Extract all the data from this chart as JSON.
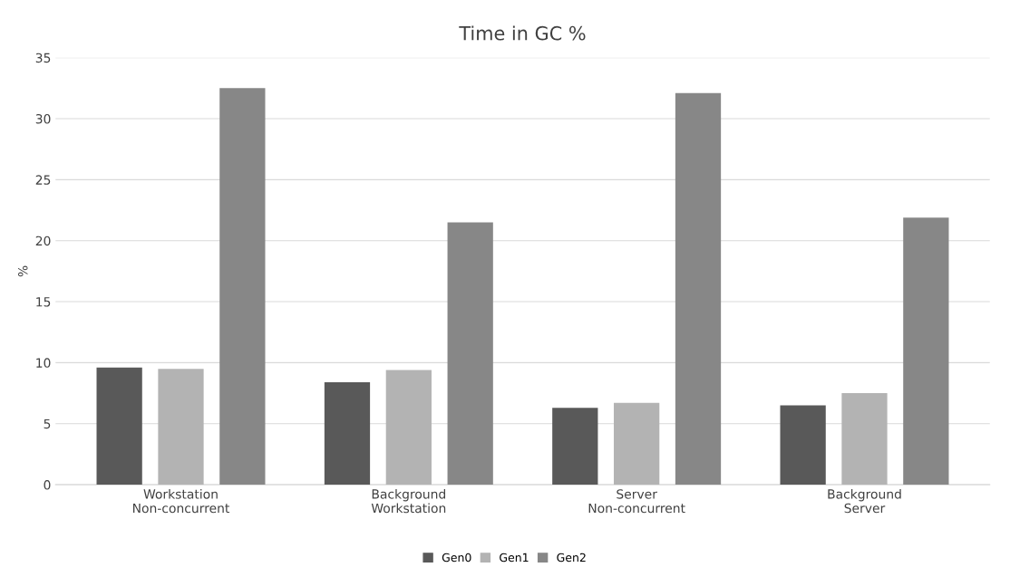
{
  "chart_data": {
    "type": "bar",
    "title": "Time in GC %",
    "ylabel": "%",
    "categories": [
      "Workstation\nNon-concurrent",
      "Background\nWorkstation",
      "Server\nNon-concurrent",
      "Background\nServer"
    ],
    "series": [
      {
        "name": "Gen0",
        "color": "#595959",
        "values": [
          9.6,
          8.4,
          6.3,
          6.5
        ]
      },
      {
        "name": "Gen1",
        "color": "#b3b3b3",
        "values": [
          9.5,
          9.4,
          6.7,
          7.5
        ]
      },
      {
        "name": "Gen2",
        "color": "#878787",
        "values": [
          32.5,
          21.5,
          32.1,
          21.9
        ]
      }
    ],
    "ylim": [
      0,
      35
    ],
    "yticks": [
      0,
      5,
      10,
      15,
      20,
      25,
      30,
      35
    ],
    "grid": "y",
    "legend": "bottom"
  }
}
